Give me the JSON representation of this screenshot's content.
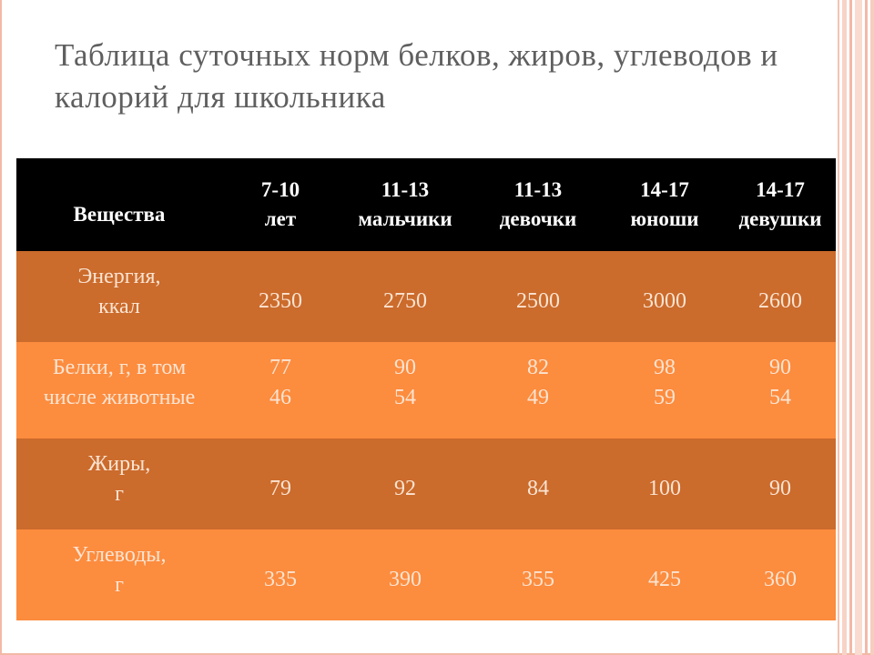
{
  "title": "Таблица суточных норм белков, жиров, углеводов и калорий для школьника",
  "table": {
    "headers": [
      {
        "lines": [
          "Вещества"
        ]
      },
      {
        "lines": [
          "7-10",
          "лет"
        ]
      },
      {
        "lines": [
          "11-13",
          "мальчики"
        ]
      },
      {
        "lines": [
          "11-13",
          "девочки"
        ]
      },
      {
        "lines": [
          "14-17",
          "юноши"
        ]
      },
      {
        "lines": [
          "14-17",
          "девушки"
        ]
      }
    ],
    "rows": [
      {
        "label": [
          "Энергия,",
          "ккал"
        ],
        "values": [
          [
            "2350"
          ],
          [
            "2750"
          ],
          [
            "2500"
          ],
          [
            "3000"
          ],
          [
            "2600"
          ]
        ]
      },
      {
        "label": [
          "Белки, г, в том",
          "числе животные"
        ],
        "values": [
          [
            "77",
            "46"
          ],
          [
            "90",
            "54"
          ],
          [
            "82",
            "49"
          ],
          [
            "98",
            "59"
          ],
          [
            "90",
            "54"
          ]
        ]
      },
      {
        "label": [
          "Жиры,",
          "г"
        ],
        "values": [
          [
            "79"
          ],
          [
            "92"
          ],
          [
            "84"
          ],
          [
            "100"
          ],
          [
            "90"
          ]
        ]
      },
      {
        "label": [
          "Углеводы,",
          "г"
        ],
        "values": [
          [
            "335"
          ],
          [
            "390"
          ],
          [
            "355"
          ],
          [
            "425"
          ],
          [
            "360"
          ]
        ]
      }
    ]
  },
  "colors": {
    "header_bg": "#000000",
    "row_dark": "#cb6b2c",
    "row_light": "#fc8c3e",
    "cell_text": "#fbe4d2",
    "title_text": "#5f5f5f"
  }
}
